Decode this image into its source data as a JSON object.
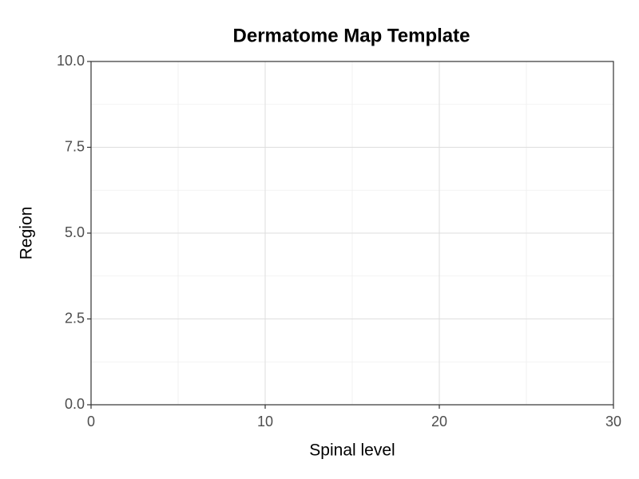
{
  "chart_data": {
    "type": "scatter",
    "title": "Dermatome Map Template",
    "x_label": "Spinal level",
    "y_label": "Region",
    "xlim": [
      0,
      30
    ],
    "xticks": [
      0,
      10,
      20,
      30
    ],
    "ylim": [
      0,
      10
    ],
    "yticks": [
      {
        "value": 0,
        "label": "0.0"
      },
      2.5,
      {
        "value": 5,
        "label": "5.0"
      },
      7.5,
      {
        "value": 10,
        "label": "10.0"
      }
    ],
    "grid": true
  }
}
